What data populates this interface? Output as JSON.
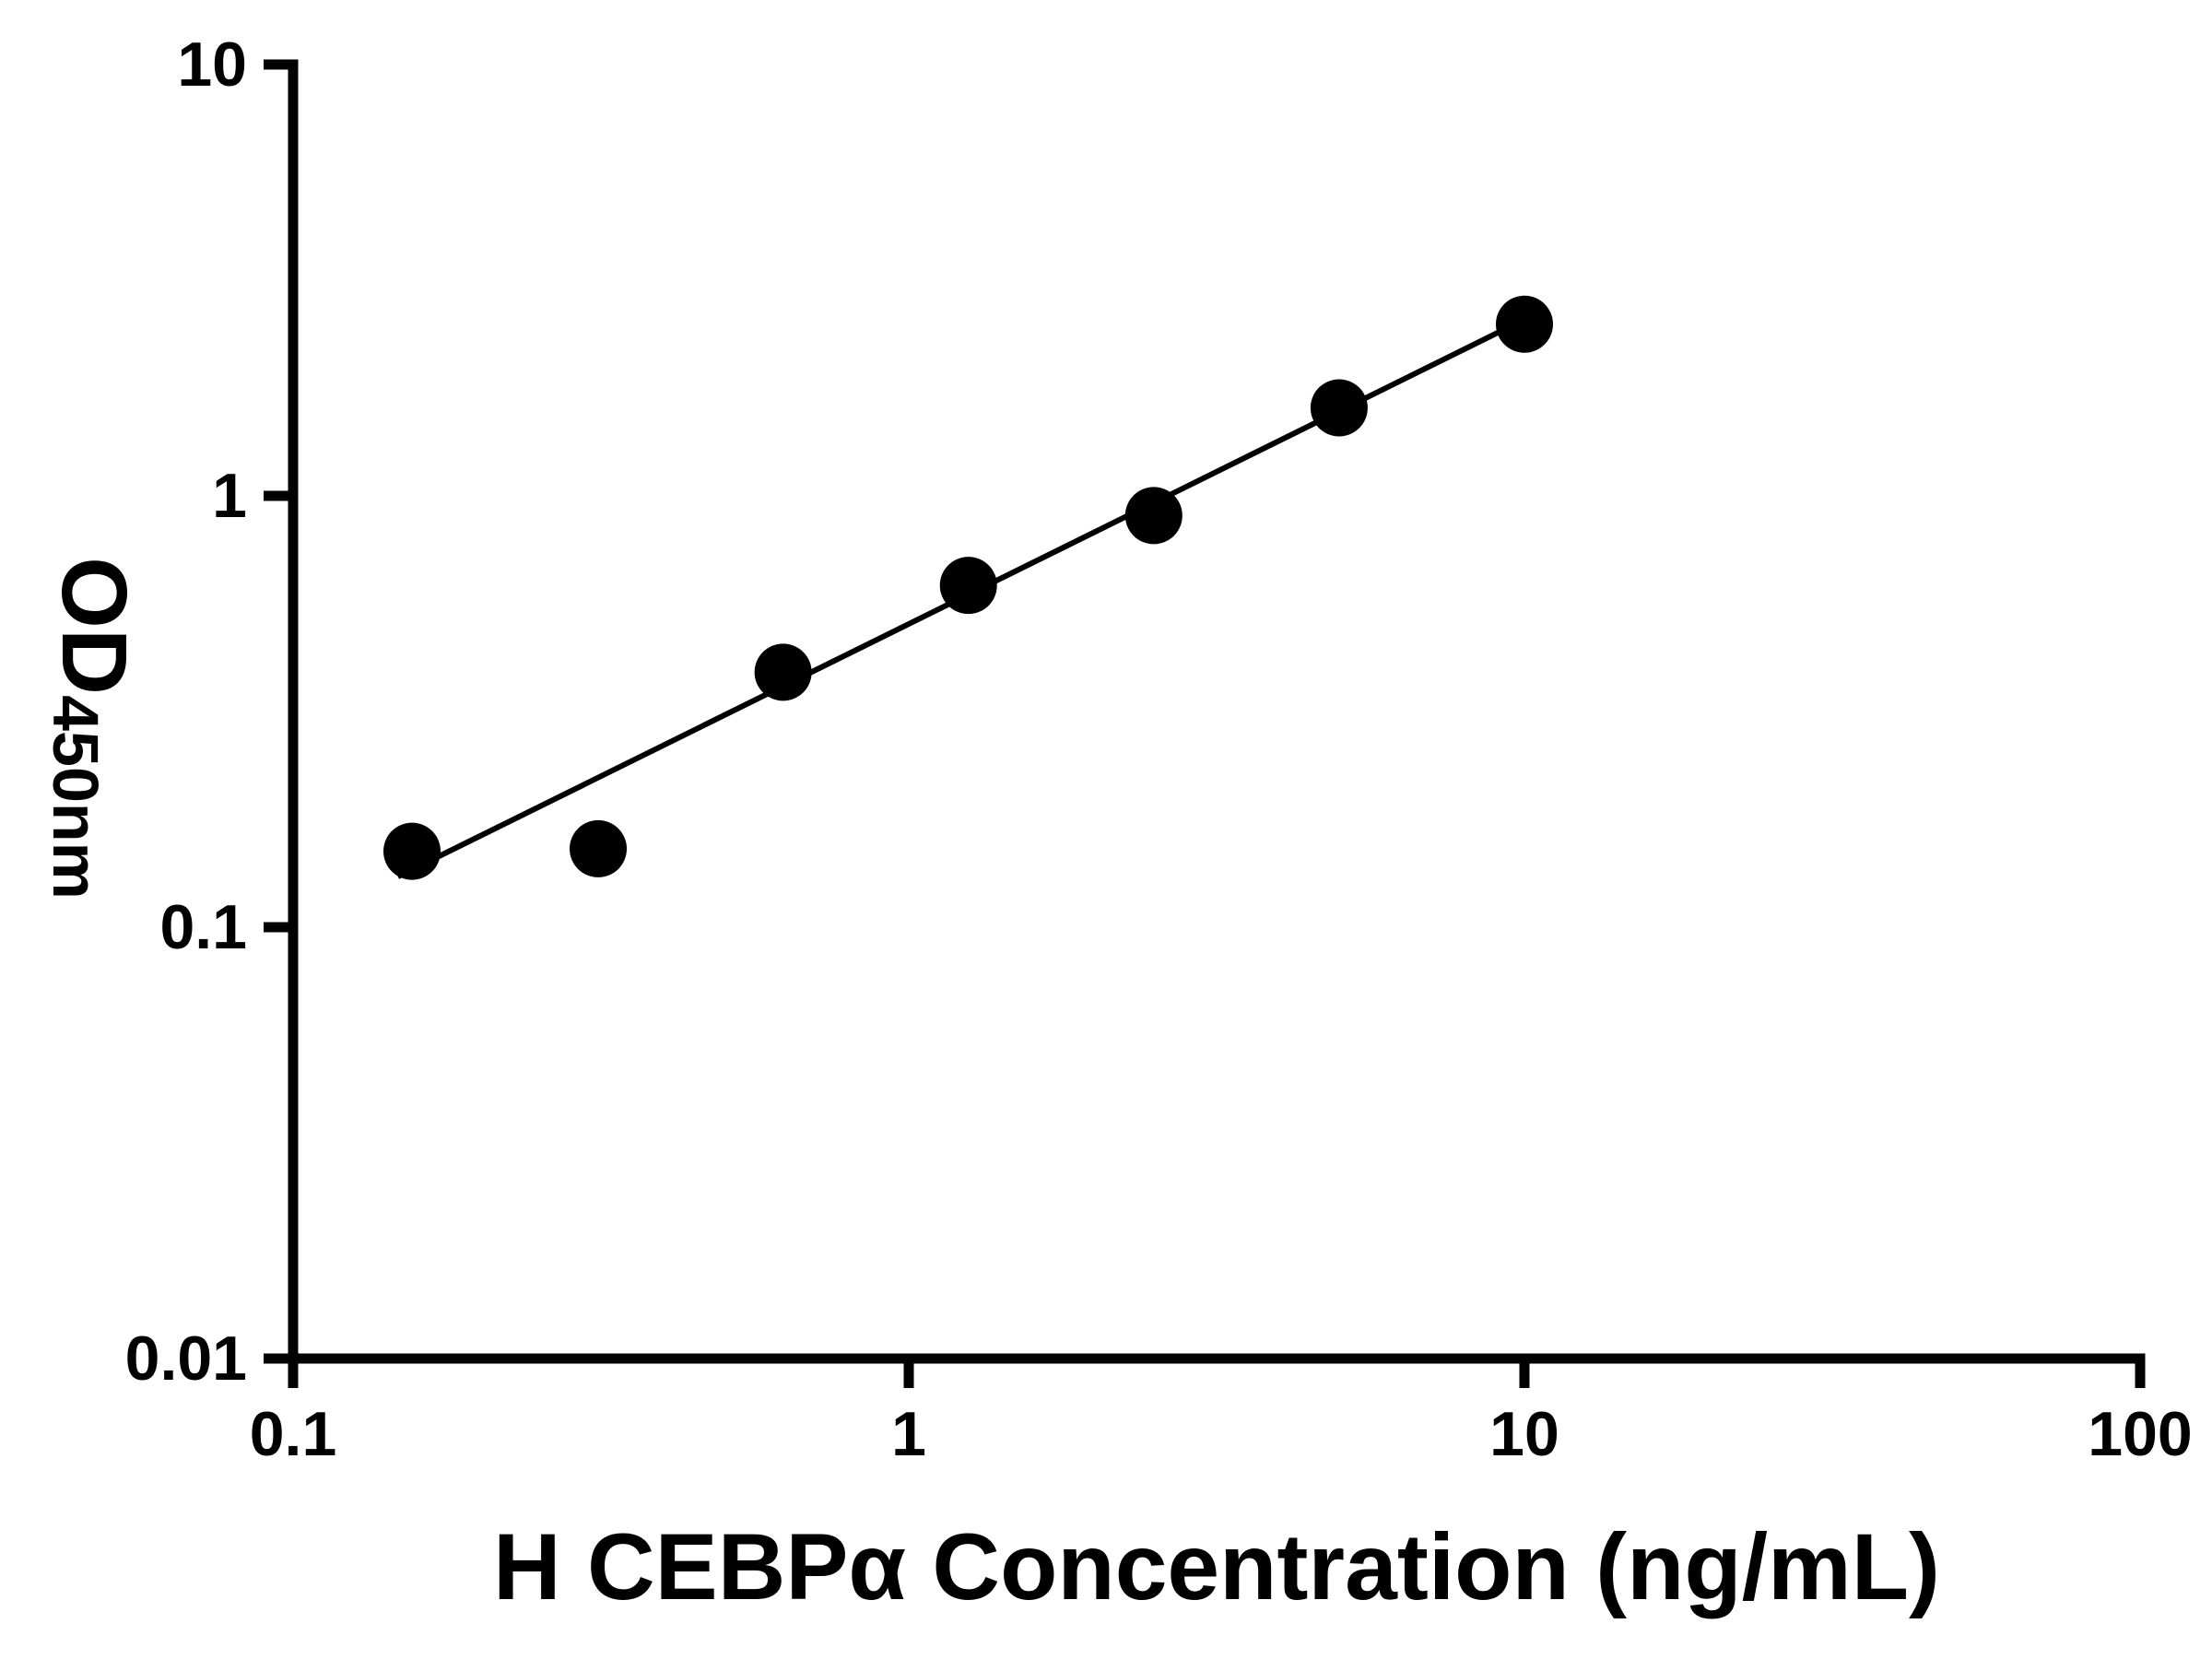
{
  "chart_data": {
    "type": "scatter",
    "title": "",
    "xlabel": "H CEBPα Concentration (ng/mL)",
    "ylabel_main": "OD",
    "ylabel_sub": "450nm",
    "x_scale": "log",
    "y_scale": "log",
    "xlim": [
      0.1,
      100
    ],
    "ylim": [
      0.01,
      10
    ],
    "grid": false,
    "legend": "none",
    "background_color": "#ffffff",
    "axis_color": "#000000",
    "marker_color": "#000000",
    "line_color": "#000000",
    "x_ticks": [
      {
        "value": 0.1,
        "label": "0.1"
      },
      {
        "value": 1,
        "label": "1"
      },
      {
        "value": 10,
        "label": "10"
      },
      {
        "value": 100,
        "label": "100"
      }
    ],
    "y_ticks": [
      {
        "value": 0.01,
        "label": "0.01"
      },
      {
        "value": 0.1,
        "label": "0.1"
      },
      {
        "value": 1,
        "label": "1"
      },
      {
        "value": 10,
        "label": "10"
      }
    ],
    "points": [
      {
        "x": 0.156,
        "y": 0.15
      },
      {
        "x": 0.313,
        "y": 0.152
      },
      {
        "x": 0.625,
        "y": 0.39
      },
      {
        "x": 1.25,
        "y": 0.62
      },
      {
        "x": 2.5,
        "y": 0.9
      },
      {
        "x": 5,
        "y": 1.6
      },
      {
        "x": 10,
        "y": 2.5
      }
    ],
    "trendline": {
      "x1": 0.148,
      "y1": 0.131,
      "x2": 10.2,
      "y2": 2.6
    }
  }
}
